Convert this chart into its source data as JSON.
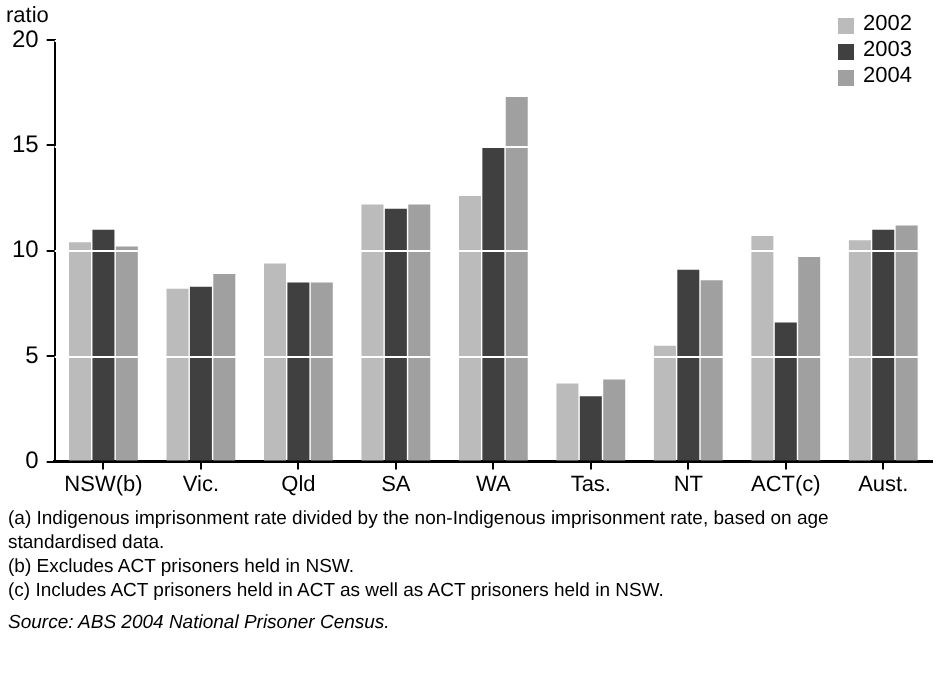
{
  "chart_data": {
    "type": "bar",
    "ylabel": "ratio",
    "categories": [
      "NSW(b)",
      "Vic.",
      "Qld",
      "SA",
      "WA",
      "Tas.",
      "NT",
      "ACT(c)",
      "Aust."
    ],
    "series": [
      {
        "name": "2002",
        "color": "#bbbbbb",
        "values": [
          10.4,
          8.2,
          9.4,
          12.2,
          12.6,
          3.7,
          5.5,
          10.7,
          10.5
        ]
      },
      {
        "name": "2003",
        "color": "#404040",
        "values": [
          11.0,
          8.3,
          8.5,
          12.0,
          14.9,
          3.1,
          9.1,
          6.6,
          11.0
        ]
      },
      {
        "name": "2004",
        "color": "#a0a0a0",
        "values": [
          10.2,
          8.9,
          8.5,
          12.2,
          17.3,
          3.9,
          8.6,
          9.7,
          11.2
        ]
      }
    ],
    "ylim": [
      0,
      20
    ],
    "yticks": [
      0,
      5,
      10,
      15,
      20
    ],
    "grid": "y",
    "legend": "top right",
    "annotations": [
      "(a) Indigenous imprisonment rate divided by the non-Indigenous imprisonment rate, based on age standardised data.",
      "(b) Excludes ACT prisoners held in NSW.",
      "(c) Includes ACT prisoners held in ACT as well as ACT prisoners held in NSW.",
      "Source: ABS 2004 National Prisoner Census."
    ]
  }
}
